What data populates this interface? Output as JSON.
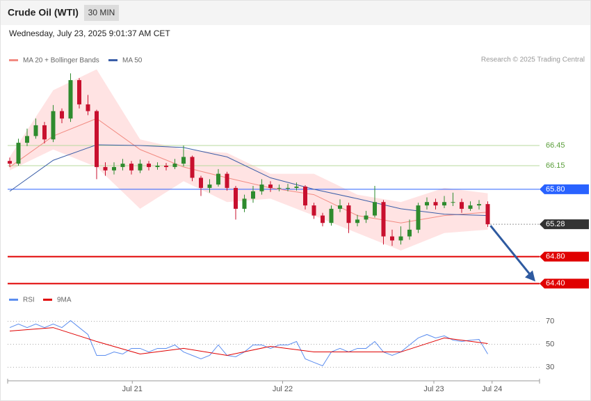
{
  "chart_data": [
    {
      "type": "candlestick",
      "title": "Crude Oil (WTI)",
      "timeframe": "30 MIN",
      "subtitle": "Wednesday, July 23, 2025 9:01:37 AM CET",
      "credit": "Research © 2025 Trading Central",
      "up_color": "#2e8b2e",
      "down_color": "#c8102e",
      "open": [
        66.22,
        66.18,
        66.49,
        66.59,
        66.75,
        66.54,
        66.96,
        66.85,
        67.42,
        67.06,
        66.96,
        66.13,
        66.08,
        66.13,
        66.18,
        66.08,
        66.18,
        66.13,
        66.15,
        66.13,
        66.18,
        66.28,
        65.97,
        65.82,
        65.87,
        66.03,
        65.82,
        65.51,
        65.66,
        65.77,
        65.87,
        65.82,
        65.82,
        65.82,
        65.84,
        65.56,
        65.41,
        65.3,
        65.51,
        65.56,
        65.3,
        65.35,
        65.41,
        65.61,
        65.1,
        65.04,
        65.1,
        65.2,
        65.56,
        65.61,
        65.56,
        65.61,
        65.61,
        65.51,
        65.56,
        65.58
      ],
      "high": [
        66.27,
        66.55,
        66.7,
        66.85,
        66.8,
        67.05,
        67.0,
        67.52,
        67.45,
        67.2,
        66.98,
        66.2,
        66.2,
        66.25,
        66.22,
        66.24,
        66.22,
        66.2,
        66.19,
        66.25,
        66.45,
        66.3,
        66.0,
        65.95,
        66.1,
        66.06,
        65.85,
        65.72,
        65.85,
        65.95,
        65.92,
        65.87,
        65.88,
        65.9,
        65.86,
        65.6,
        65.45,
        65.56,
        65.65,
        65.6,
        65.42,
        65.48,
        65.85,
        65.64,
        65.2,
        65.25,
        65.35,
        65.6,
        65.68,
        65.66,
        65.7,
        65.75,
        65.66,
        65.62,
        65.64,
        65.62
      ],
      "low": [
        66.13,
        66.15,
        66.44,
        66.55,
        66.48,
        66.5,
        66.78,
        66.8,
        67.0,
        66.9,
        65.95,
        66.0,
        66.02,
        66.08,
        66.02,
        66.04,
        66.08,
        66.09,
        66.08,
        66.1,
        66.14,
        65.92,
        65.7,
        65.75,
        65.84,
        65.78,
        65.35,
        65.46,
        65.6,
        65.72,
        65.76,
        65.77,
        65.77,
        65.78,
        65.5,
        65.36,
        65.25,
        65.26,
        65.46,
        65.15,
        65.25,
        65.3,
        65.38,
        64.98,
        64.96,
        64.98,
        65.05,
        65.15,
        65.5,
        65.5,
        65.52,
        65.55,
        65.45,
        65.48,
        65.5,
        65.24
      ],
      "close": [
        66.18,
        66.49,
        66.59,
        66.75,
        66.54,
        66.96,
        66.85,
        67.42,
        67.06,
        66.96,
        66.13,
        66.08,
        66.13,
        66.18,
        66.08,
        66.18,
        66.13,
        66.15,
        66.13,
        66.18,
        66.28,
        65.97,
        65.82,
        65.87,
        66.03,
        65.82,
        65.51,
        65.66,
        65.77,
        65.87,
        65.82,
        65.82,
        65.82,
        65.84,
        65.56,
        65.41,
        65.3,
        65.51,
        65.56,
        65.3,
        65.35,
        65.41,
        65.61,
        65.1,
        65.04,
        65.1,
        65.2,
        65.56,
        65.61,
        65.56,
        65.61,
        65.61,
        65.51,
        65.56,
        65.58,
        65.28
      ],
      "overlay_x": [
        0,
        5,
        10,
        15,
        20,
        25,
        30,
        35,
        40,
        45,
        50,
        55
      ],
      "series": [
        {
          "name": "MA 20 + Bollinger Bands",
          "color": "#f28b82",
          "band_color": "#ffe3e3",
          "values": [
            66.13,
            66.59,
            66.85,
            66.39,
            66.13,
            65.97,
            65.82,
            65.72,
            65.41,
            65.3,
            65.41,
            65.46
          ],
          "upper": [
            66.28,
            67.27,
            67.58,
            66.54,
            66.39,
            66.34,
            66.03,
            66.03,
            65.72,
            65.61,
            65.82,
            65.74
          ],
          "lower": [
            66.08,
            66.39,
            66.13,
            65.51,
            65.92,
            65.61,
            65.66,
            65.41,
            65.15,
            64.89,
            65.15,
            65.2
          ]
        },
        {
          "name": "MA 50",
          "color": "#3a5ea8",
          "values": [
            65.77,
            66.23,
            66.46,
            66.45,
            66.42,
            66.28,
            65.97,
            65.8,
            65.66,
            65.51,
            65.43,
            65.41
          ]
        }
      ],
      "levels": [
        {
          "value": 66.45,
          "label": "66.45",
          "color": "#b7d99e",
          "text_color": "#5a9e3a",
          "box": false
        },
        {
          "value": 66.15,
          "label": "66.15",
          "color": "#b7d99e",
          "text_color": "#5a9e3a",
          "box": false
        },
        {
          "value": 65.8,
          "label": "65.80",
          "color": "#2962ff",
          "text_color": "#ffffff",
          "box": true
        },
        {
          "value": 65.28,
          "label": "65.28",
          "color": "#333333",
          "text_color": "#ffffff",
          "box": true,
          "dotted": true
        },
        {
          "value": 64.8,
          "label": "64.80",
          "color": "#e00000",
          "text_color": "#ffffff",
          "box": true
        },
        {
          "value": 64.4,
          "label": "64.40",
          "color": "#e00000",
          "text_color": "#ffffff",
          "box": true
        }
      ],
      "xlim": [
        -0.24,
        60.96
      ],
      "ylim": [
        64.3,
        67.7
      ]
    },
    {
      "type": "line",
      "series": [
        {
          "name": "RSI",
          "color": "#5b8def",
          "values": [
            64.5,
            67.6,
            64.5,
            67.6,
            64.5,
            67.6,
            64.5,
            70.6,
            64.5,
            58.5,
            40.3,
            40.3,
            43.3,
            41.5,
            46.4,
            46.4,
            43.3,
            46.4,
            46.4,
            49.4,
            43.3,
            40.3,
            37.3,
            40.3,
            49.4,
            40.3,
            39.1,
            43.3,
            49.4,
            49.4,
            46.4,
            49.4,
            49.4,
            52.4,
            37.3,
            34.2,
            31.2,
            43.3,
            46.4,
            43.3,
            46.4,
            46.4,
            52.4,
            43.3,
            40.3,
            43.3,
            49.4,
            55.5,
            58.5,
            55.5,
            57.3,
            53.6,
            52.4,
            53.6,
            54.2,
            41.5
          ]
        },
        {
          "name": "9MA",
          "color": "#e00000",
          "x": [
            0,
            5,
            10,
            15,
            20,
            25,
            30,
            35,
            40,
            45,
            50,
            55
          ],
          "values": [
            61.5,
            64.5,
            52.4,
            41.5,
            46.4,
            40.3,
            48.2,
            43.3,
            43.3,
            43.3,
            55.5,
            50.6
          ]
        }
      ],
      "xlim": [
        -0.24,
        60.96
      ],
      "ylim": [
        20,
        80
      ],
      "yticks": [
        30,
        50,
        70
      ],
      "xticks": [
        {
          "value": 14.1,
          "label": "Jul 21"
        },
        {
          "value": 31.4,
          "label": "Jul 22"
        },
        {
          "value": 48.8,
          "label": "Jul 23"
        },
        {
          "value": 55.5,
          "label": "Jul 24"
        }
      ]
    }
  ]
}
